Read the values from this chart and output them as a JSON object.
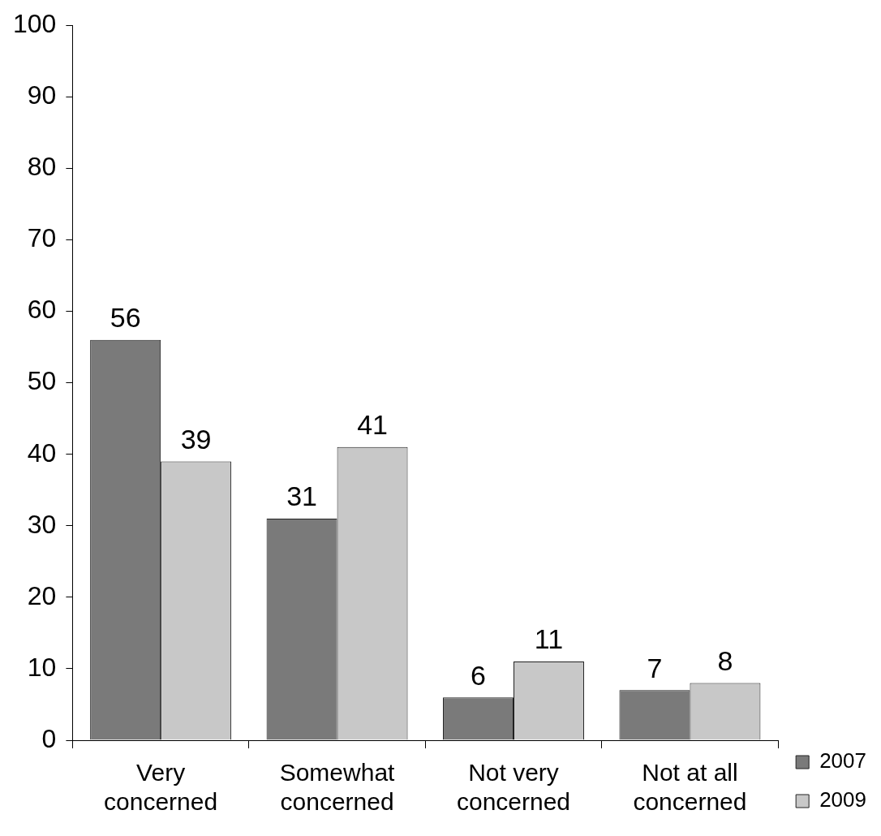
{
  "chart_data": {
    "type": "bar",
    "categories": [
      "Very concerned",
      "Somewhat concerned",
      "Not very concerned",
      "Not at all concerned"
    ],
    "series": [
      {
        "name": "2007",
        "color": "#7a7a7a",
        "values": [
          56,
          31,
          6,
          7
        ]
      },
      {
        "name": "2009",
        "color": "#c8c8c8",
        "values": [
          39,
          41,
          11,
          8
        ]
      }
    ],
    "ylim": [
      0,
      100
    ],
    "yticks": [
      0,
      10,
      20,
      30,
      40,
      50,
      60,
      70,
      80,
      90,
      100
    ],
    "grid": false,
    "legend": "right",
    "data_labels": true
  }
}
